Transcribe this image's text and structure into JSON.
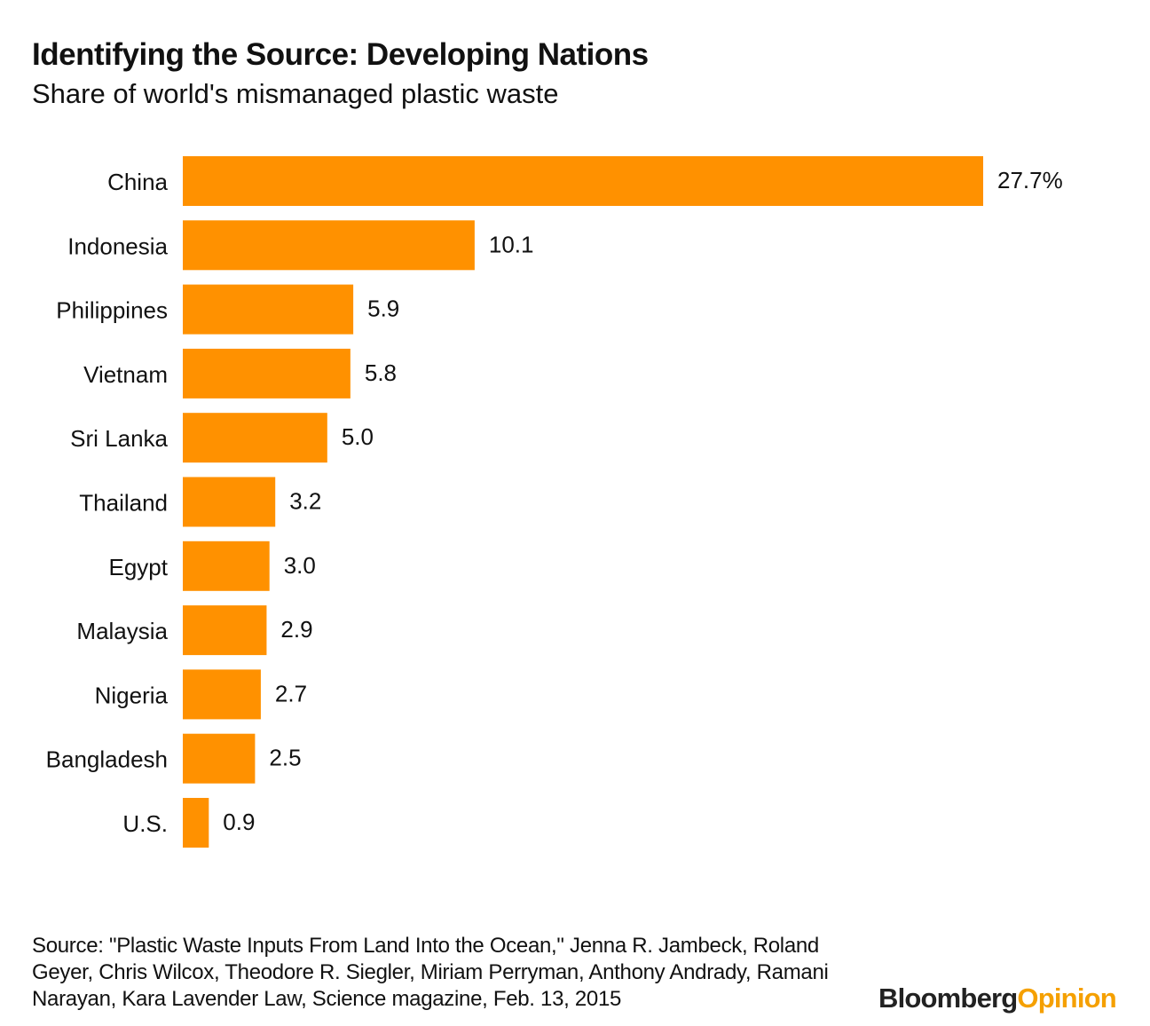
{
  "chart_data": {
    "type": "bar",
    "orientation": "horizontal",
    "title": "Identifying the Source: Developing Nations",
    "subtitle": "Share of world's mismanaged plastic waste",
    "categories": [
      "China",
      "Indonesia",
      "Philippines",
      "Vietnam",
      "Sri Lanka",
      "Thailand",
      "Egypt",
      "Malaysia",
      "Nigeria",
      "Bangladesh",
      "U.S."
    ],
    "values": [
      27.7,
      10.1,
      5.9,
      5.8,
      5.0,
      3.2,
      3.0,
      2.9,
      2.7,
      2.5,
      0.9
    ],
    "value_labels": [
      "27.7%",
      "10.1",
      "5.9",
      "5.8",
      "5.0",
      "3.2",
      "3.0",
      "2.9",
      "2.7",
      "2.5",
      "0.9"
    ],
    "unit": "%",
    "xlabel": "",
    "ylabel": "",
    "xlim": [
      0,
      27.7
    ],
    "grid": false,
    "bar_color": "#FF9100"
  },
  "source": "Source: \"Plastic Waste Inputs From Land Into the Ocean,\" Jenna R. Jambeck, Roland Geyer, Chris Wilcox, Theodore R. Siegler, Miriam Perryman, Anthony Andrady, Ramani Narayan, Kara Lavender Law, Science magazine, Feb. 13, 2015",
  "logo": {
    "part1": "Bloomberg",
    "part2": "Opinion"
  }
}
